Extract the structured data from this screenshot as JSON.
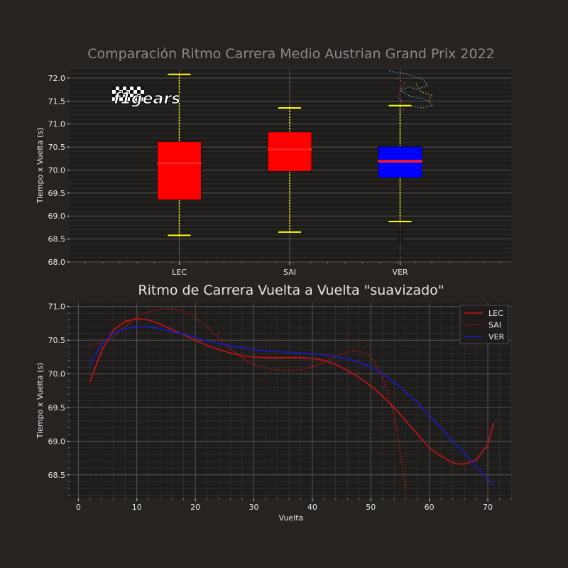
{
  "colors": {
    "background": "#262321",
    "axes_bg": "#1f1d1b",
    "grid_major": "#555555",
    "grid_minor": "#3a3a3a",
    "box_red": "#ff0000",
    "box_blue": "#0000ff",
    "whisker": "#ffff00",
    "median": "#ff2020",
    "line_red": "#cc1111",
    "line_blue": "#1a1acc"
  },
  "logo": {
    "text": "f1gears"
  },
  "chart_data": [
    {
      "type": "box",
      "title": "Comparación Ritmo Carrera Medio Austrian Grand Prix 2022",
      "xlabel": "",
      "ylabel": "Tiempo x Vuelta (s)",
      "ylim": [
        68.0,
        72.2
      ],
      "yticks": [
        "68.0",
        "68.5",
        "69.0",
        "69.5",
        "70.0",
        "70.5",
        "71.0",
        "71.5",
        "72.0"
      ],
      "grid": true,
      "boxes": [
        {
          "label": "LEC",
          "color": "#ff0000",
          "whislo": 68.58,
          "q1": 69.35,
          "med": 70.15,
          "q3": 70.62,
          "whishi": 72.08,
          "fliers": []
        },
        {
          "label": "SAI",
          "color": "#ff0000",
          "whislo": 68.65,
          "q1": 69.97,
          "med": 70.45,
          "q3": 70.83,
          "whishi": 71.35,
          "fliers": []
        },
        {
          "label": "VER",
          "color": "#0000ff",
          "whislo": 68.88,
          "q1": 69.83,
          "med": 70.19,
          "q3": 70.51,
          "whishi": 71.4,
          "fliers": [
            68.7,
            68.6,
            68.52,
            68.45,
            68.18,
            71.65,
            71.92
          ]
        }
      ]
    },
    {
      "type": "line",
      "title": "Ritmo de Carrera Vuelta a Vuelta \"suavizado\"",
      "xlabel": "Vuelta",
      "ylabel": "Tiempo x Vuelta (s)",
      "xlim": [
        -1.5,
        74
      ],
      "ylim": [
        68.15,
        71.05
      ],
      "xticks": [
        "0",
        "10",
        "20",
        "30",
        "40",
        "50",
        "60",
        "70"
      ],
      "yticks": [
        "68.5",
        "69.0",
        "69.5",
        "70.0",
        "70.5",
        "71.0"
      ],
      "legend": "top-right",
      "grid": true,
      "series": [
        {
          "name": "LEC",
          "color": "#cc1111",
          "style": "solid",
          "x": [
            2,
            4,
            6,
            8,
            10,
            12,
            14,
            16,
            18,
            20,
            22,
            24,
            26,
            28,
            30,
            32,
            34,
            36,
            38,
            40,
            42,
            44,
            46,
            48,
            50,
            52,
            54,
            56,
            58,
            60,
            62,
            64,
            65,
            66,
            68,
            70,
            71
          ],
          "y": [
            69.88,
            70.35,
            70.65,
            70.78,
            70.82,
            70.8,
            70.74,
            70.66,
            70.58,
            70.5,
            70.42,
            70.36,
            70.31,
            70.27,
            70.25,
            70.24,
            70.24,
            70.24,
            70.24,
            70.23,
            70.2,
            70.14,
            70.05,
            69.95,
            69.82,
            69.67,
            69.5,
            69.3,
            69.1,
            68.9,
            68.78,
            68.68,
            68.66,
            68.66,
            68.72,
            68.95,
            69.27
          ]
        },
        {
          "name": "SAI",
          "color": "#cc1111",
          "style": "dotted",
          "x": [
            2,
            4,
            6,
            8,
            10,
            12,
            14,
            16,
            18,
            20,
            22,
            24,
            26,
            28,
            30,
            32,
            34,
            36,
            38,
            40,
            42,
            44,
            46,
            48,
            50,
            52,
            54,
            55,
            56
          ],
          "y": [
            70.43,
            70.46,
            70.55,
            70.7,
            70.84,
            70.92,
            70.96,
            70.97,
            70.93,
            70.84,
            70.7,
            70.53,
            70.37,
            70.24,
            70.14,
            70.09,
            70.06,
            70.05,
            70.06,
            70.1,
            70.18,
            70.26,
            70.33,
            70.35,
            70.25,
            69.95,
            69.4,
            68.85,
            68.25
          ]
        },
        {
          "name": "VER",
          "color": "#1a1acc",
          "style": "solid",
          "x": [
            2,
            4,
            6,
            8,
            10,
            12,
            14,
            16,
            18,
            20,
            22,
            24,
            26,
            28,
            30,
            32,
            34,
            36,
            38,
            40,
            42,
            44,
            46,
            48,
            50,
            52,
            54,
            56,
            58,
            60,
            62,
            64,
            66,
            68,
            70,
            71
          ],
          "y": [
            70.13,
            70.45,
            70.6,
            70.67,
            70.7,
            70.7,
            70.67,
            70.63,
            70.59,
            70.54,
            70.49,
            70.45,
            70.42,
            70.39,
            70.36,
            70.34,
            70.33,
            70.32,
            70.31,
            70.3,
            70.28,
            70.26,
            70.22,
            70.17,
            70.1,
            70.0,
            69.88,
            69.73,
            69.57,
            69.39,
            69.2,
            69.0,
            68.82,
            68.62,
            68.44,
            68.35
          ]
        }
      ]
    }
  ]
}
